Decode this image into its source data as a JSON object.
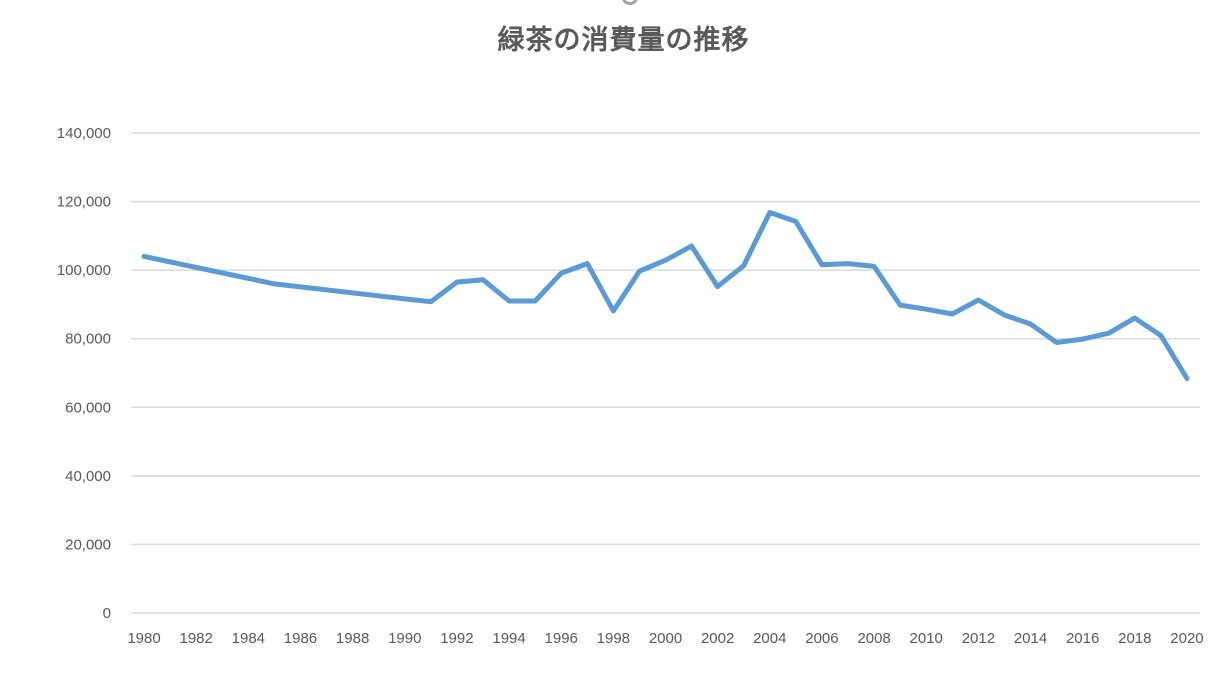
{
  "chart": {
    "title": "緑茶の消費量の推移",
    "line_color": "#5B9BD5",
    "grid_color": "#D9D9D9",
    "text_color": "#595959"
  },
  "chart_data": {
    "type": "line",
    "title": "緑茶の消費量の推移",
    "xlabel": "",
    "ylabel": "",
    "ylim": [
      0,
      140000
    ],
    "y_ticks": [
      0,
      20000,
      40000,
      60000,
      80000,
      100000,
      120000,
      140000
    ],
    "y_tick_labels": [
      "0",
      "20,000",
      "40,000",
      "60,000",
      "80,000",
      "100,000",
      "120,000",
      "140,000"
    ],
    "x_range": [
      1980,
      2020
    ],
    "x_tick_labels": [
      "1980",
      "1982",
      "1984",
      "1986",
      "1988",
      "1990",
      "1992",
      "1994",
      "1996",
      "1998",
      "2000",
      "2002",
      "2004",
      "2006",
      "2008",
      "2010",
      "2012",
      "2014",
      "2016",
      "2018",
      "2020"
    ],
    "grid": true,
    "legend": "none",
    "series": [
      {
        "name": "緑茶の消費量",
        "x": [
          1980,
          1985,
          1990,
          1991,
          1992,
          1993,
          1994,
          1995,
          1996,
          1997,
          1998,
          1999,
          2000,
          2001,
          2002,
          2003,
          2004,
          2005,
          2006,
          2007,
          2008,
          2009,
          2010,
          2011,
          2012,
          2013,
          2014,
          2015,
          2016,
          2017,
          2018,
          2019,
          2020
        ],
        "values": [
          104000,
          96000,
          91600,
          90800,
          96500,
          97200,
          91000,
          91000,
          99100,
          101900,
          88100,
          99700,
          102900,
          107000,
          95200,
          101300,
          116800,
          114200,
          101600,
          101900,
          101100,
          89800,
          88600,
          87200,
          91300,
          86900,
          84300,
          78900,
          79900,
          81600,
          86000,
          80900,
          68400
        ]
      }
    ]
  }
}
